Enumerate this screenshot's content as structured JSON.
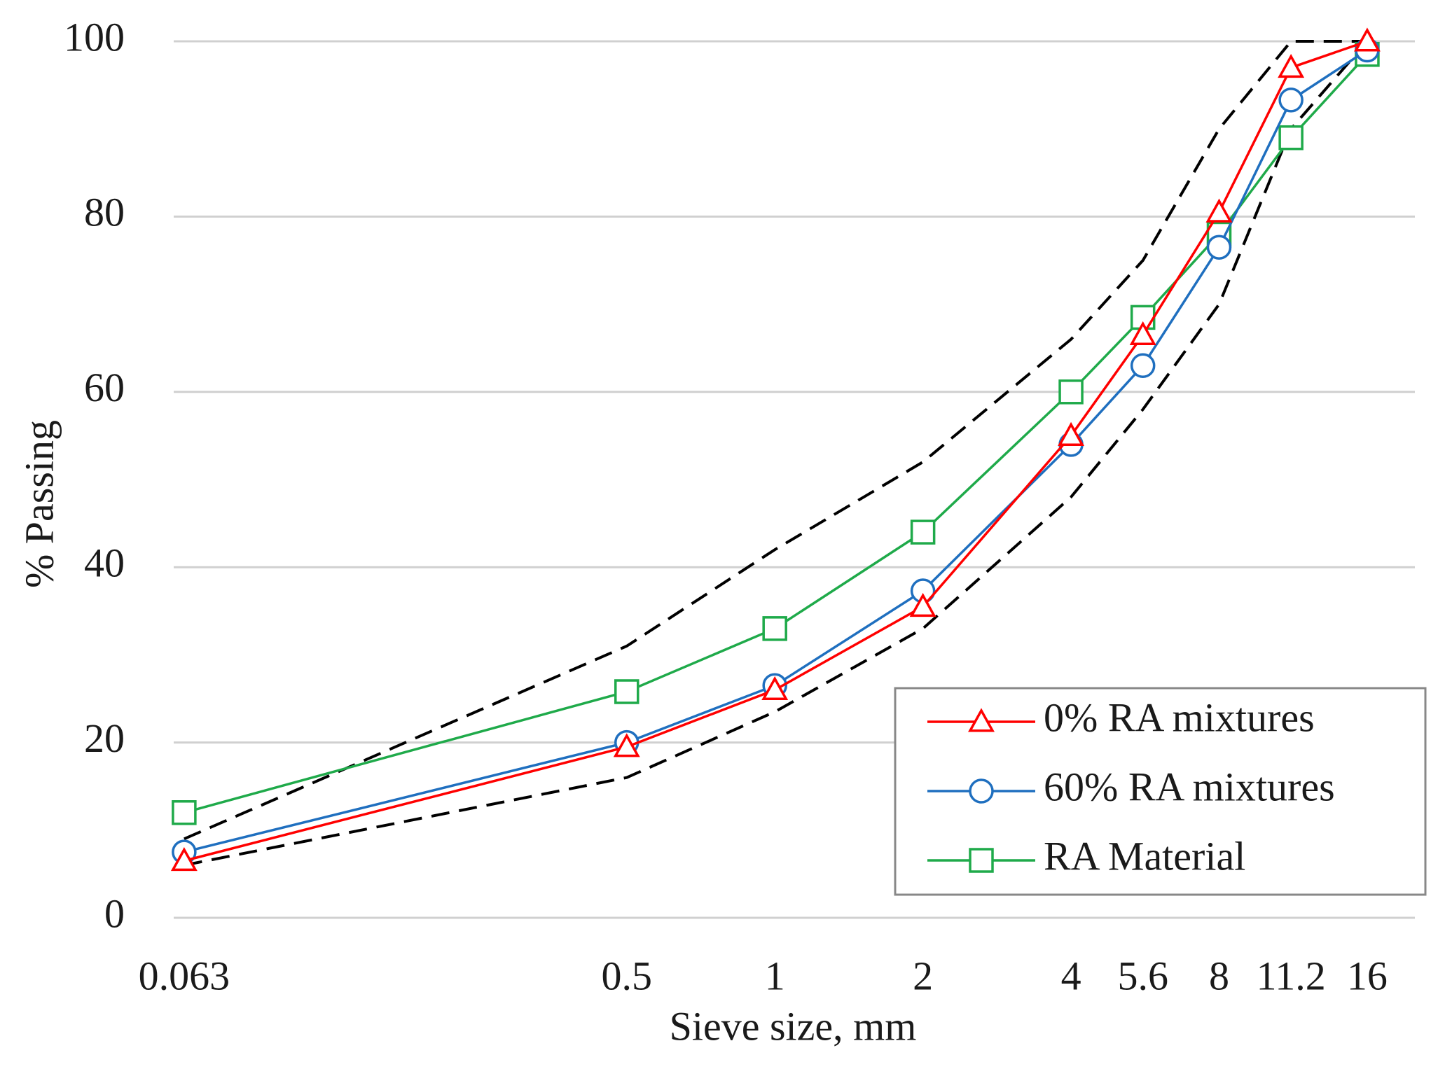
{
  "chart_data": {
    "type": "line",
    "x_label": "Sieve size, mm",
    "y_label": "% Passing",
    "x": [
      0.063,
      0.5,
      1,
      2,
      4,
      5.6,
      8,
      11.2,
      16
    ],
    "x_scale": "log",
    "xlim": [
      0.06,
      20
    ],
    "xticks": [
      0.063,
      0.5,
      1,
      2,
      4,
      5.6,
      8,
      11.2,
      16
    ],
    "ylim": [
      0,
      100
    ],
    "yticks": [
      0,
      20,
      40,
      60,
      80,
      100
    ],
    "grid": true,
    "legend": "lower right",
    "series": [
      {
        "name": "0% RA mixtures",
        "color": "#ff0000",
        "marker": "triangle",
        "values": [
          6.5,
          19.5,
          26,
          35.5,
          55,
          66.5,
          80.5,
          97,
          100
        ]
      },
      {
        "name": "60% RA mixtures",
        "color": "#1f6fbf",
        "marker": "circle",
        "values": [
          7.5,
          20,
          26.5,
          37.3,
          54,
          63,
          76.5,
          93.3,
          99
        ]
      },
      {
        "name": "RA Material",
        "color": "#1faa4a",
        "marker": "square",
        "values": [
          12,
          25.8,
          33,
          44,
          60,
          68.5,
          78,
          89,
          98.5
        ]
      },
      {
        "color": "#000000",
        "dash": true,
        "values": [
          9,
          31,
          42,
          52,
          66,
          75,
          90,
          100,
          100
        ]
      },
      {
        "color": "#000000",
        "dash": true,
        "values": [
          6,
          16,
          23.5,
          33,
          48,
          58,
          70,
          90,
          100
        ]
      }
    ]
  }
}
